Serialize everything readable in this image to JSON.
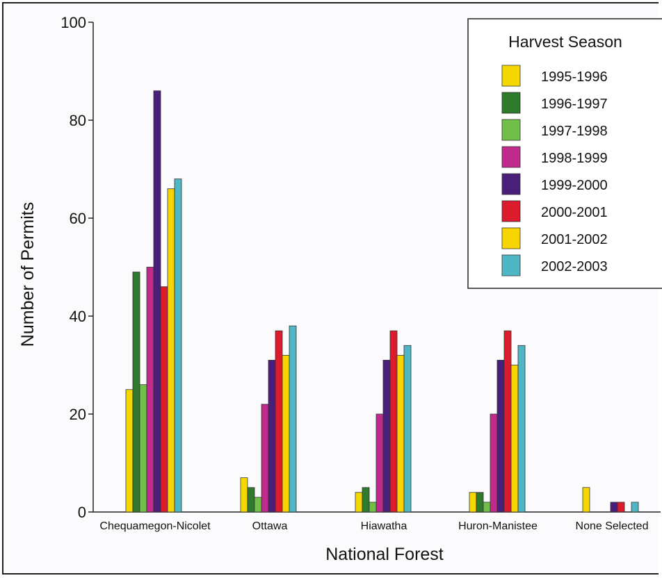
{
  "chart_data": {
    "type": "bar",
    "title": "",
    "xlabel": "National Forest",
    "ylabel": "Number of Permits",
    "ylim": [
      0,
      100
    ],
    "yticks": [
      "0",
      "20",
      "40",
      "60",
      "80",
      "100"
    ],
    "categories": [
      "Chequamegon-Nicolet",
      "Ottawa",
      "Hiawatha",
      "Huron-Manistee",
      "None Selected"
    ],
    "legend": {
      "title": "Harvest Season",
      "position": "top-right"
    },
    "series": [
      {
        "name": "1995-1996",
        "color": "#f5d800",
        "values": [
          25,
          7,
          4,
          4,
          5
        ]
      },
      {
        "name": "1996-1997",
        "color": "#2f7a2c",
        "values": [
          49,
          5,
          5,
          4,
          0
        ]
      },
      {
        "name": "1997-1998",
        "color": "#6fbf48",
        "values": [
          26,
          3,
          2,
          2,
          0
        ]
      },
      {
        "name": "1998-1999",
        "color": "#c02a8a",
        "values": [
          50,
          22,
          20,
          20,
          0
        ]
      },
      {
        "name": "1999-2000",
        "color": "#4a1f7a",
        "values": [
          86,
          31,
          31,
          31,
          2
        ]
      },
      {
        "name": "2000-2001",
        "color": "#dc1c2c",
        "values": [
          46,
          37,
          37,
          37,
          2
        ]
      },
      {
        "name": "2001-2002",
        "color": "#f8d400",
        "values": [
          66,
          32,
          32,
          30,
          0
        ]
      },
      {
        "name": "2002-2003",
        "color": "#4fb7c4",
        "values": [
          68,
          38,
          34,
          34,
          2
        ]
      }
    ]
  }
}
